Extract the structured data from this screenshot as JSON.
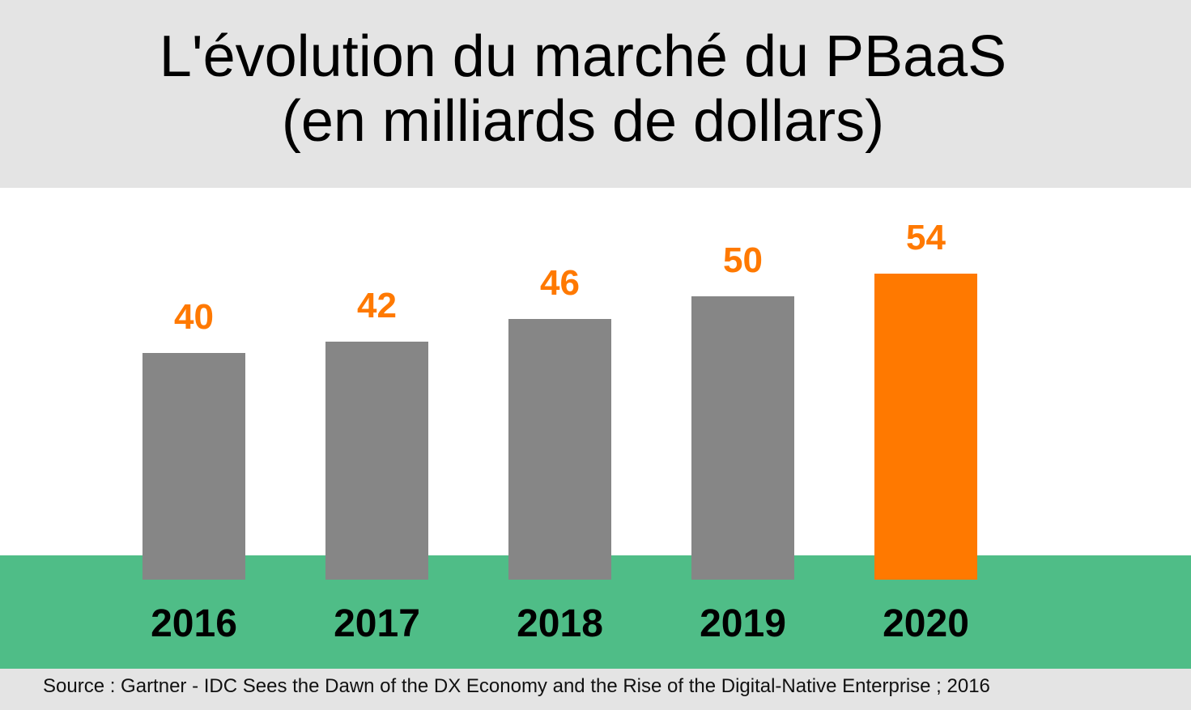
{
  "title": {
    "line1": "L'évolution du marché du PBaaS",
    "line2": "(en milliards de dollars)"
  },
  "chart_data": {
    "type": "bar",
    "categories": [
      "2016",
      "2017",
      "2018",
      "2019",
      "2020"
    ],
    "values": [
      40,
      42,
      46,
      50,
      54
    ],
    "data_labels": [
      "40",
      "42",
      "46",
      "50",
      "54"
    ],
    "colors": {
      "bar": "#868686",
      "highlight_bar": "#ff7900",
      "value_label": "#ff7900",
      "category_label": "#000000"
    },
    "highlight_index": 4,
    "ylim": [
      0,
      54
    ],
    "grid": false,
    "legend": "none"
  },
  "source": "Source : Gartner - IDC Sees the Dawn of the DX Economy and the Rise of the Digital-Native Enterprise ; 2016",
  "colors": {
    "header_bg": "#e4e4e4",
    "band_green": "#4fbd87",
    "footer_bg": "#e4e4e4"
  }
}
